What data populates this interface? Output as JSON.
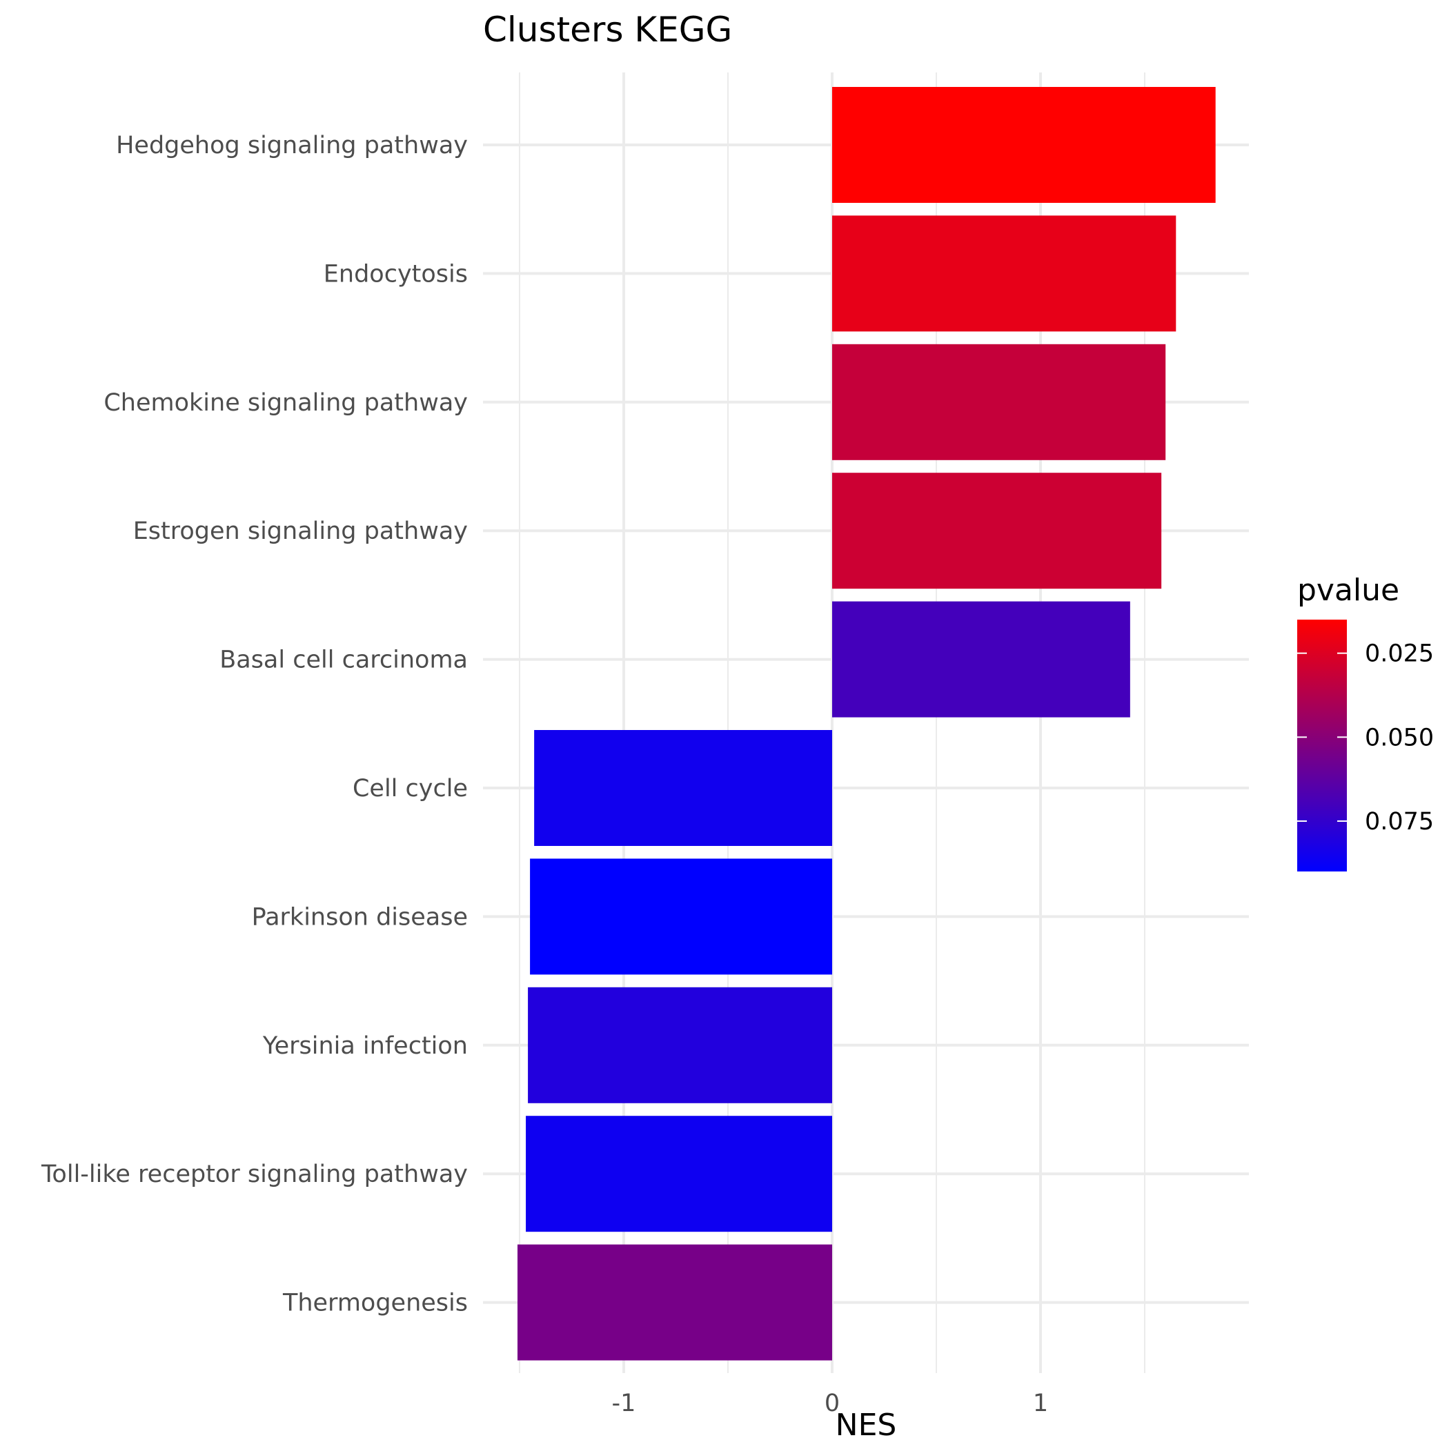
{
  "chart_data": {
    "type": "bar",
    "orientation": "horizontal",
    "title": "Clusters  KEGG",
    "xlabel": "NES",
    "ylabel": "",
    "categories": [
      "Hedgehog signaling pathway",
      "Endocytosis",
      "Chemokine signaling pathway",
      "Estrogen signaling pathway",
      "Basal cell carcinoma",
      "Cell cycle",
      "Parkinson disease",
      "Yersinia infection",
      "Toll-like receptor signaling pathway",
      "Thermogenesis"
    ],
    "values": [
      1.84,
      1.65,
      1.6,
      1.58,
      1.43,
      -1.43,
      -1.45,
      -1.46,
      -1.47,
      -1.51
    ],
    "pvalues": [
      0.015,
      0.022,
      0.032,
      0.03,
      0.07,
      0.085,
      0.09,
      0.08,
      0.086,
      0.055
    ],
    "xlim": [
      -1.51,
      2.0
    ],
    "xticks": [
      -1,
      0,
      1
    ],
    "xtick_labels": [
      "-1",
      "0",
      "1"
    ],
    "grid": true,
    "legend": {
      "title": "pvalue",
      "placement": "right",
      "low_color": "#ff0000",
      "high_color": "#0000ff",
      "range": [
        0.015,
        0.09
      ],
      "ticks": [
        0.025,
        0.05,
        0.075
      ],
      "tick_labels": [
        "0.025",
        "0.050",
        "0.075"
      ]
    }
  }
}
